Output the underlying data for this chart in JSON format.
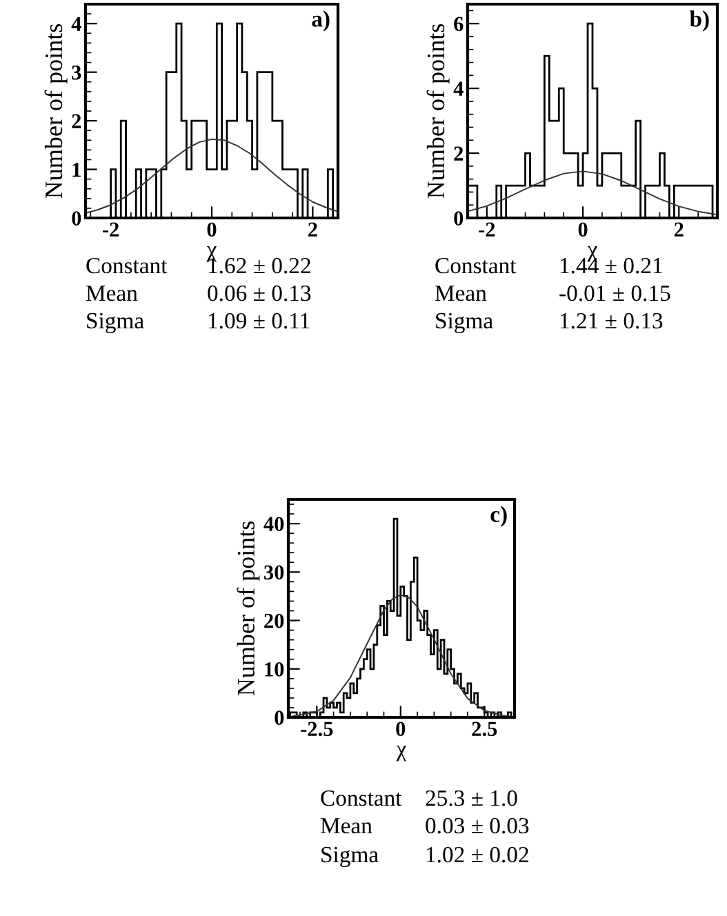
{
  "chart_data": [
    {
      "type": "histogram",
      "xlabel": "χ",
      "ylabel": "Number of points",
      "xlim": [
        -2.5,
        2.5
      ],
      "ylim": [
        0,
        4.4
      ],
      "xticks": [
        -2,
        0,
        2
      ],
      "yticks": [
        0,
        1,
        2,
        3,
        4
      ],
      "grid": false,
      "legend": false,
      "annotations": [
        "a)",
        "Constant",
        "1.62 ± 0.22",
        "Mean",
        "0.06 ± 0.13",
        "Sigma",
        "1.09 ± 0.11"
      ],
      "series": [
        {
          "color": "#000000",
          "bins": [
            -2.5,
            -2.4,
            -2.3,
            -2.2,
            -2.1,
            -2.0,
            -1.9,
            -1.8,
            -1.7,
            -1.6,
            -1.5,
            -1.4,
            -1.3,
            -1.2,
            -1.1,
            -1.0,
            -0.9,
            -0.8,
            -0.7,
            -0.6,
            -0.5,
            -0.4,
            -0.3,
            -0.2,
            -0.1,
            0.0,
            0.1,
            0.2,
            0.3,
            0.4,
            0.5,
            0.6,
            0.7,
            0.8,
            0.9,
            1.0,
            1.1,
            1.2,
            1.3,
            1.4,
            1.5,
            1.6,
            1.7,
            1.8,
            1.9,
            2.0,
            2.1,
            2.2,
            2.3,
            2.4,
            2.5
          ],
          "values": [
            0,
            0,
            0,
            0,
            0,
            1,
            0,
            2,
            0,
            0,
            1,
            0,
            1,
            1,
            0,
            1,
            3,
            3,
            4,
            2,
            1,
            2,
            2,
            2,
            1,
            1,
            4,
            1,
            2,
            2,
            4,
            3,
            2,
            1,
            3,
            3,
            3,
            2,
            2,
            1,
            1,
            1,
            0,
            1,
            0,
            0,
            0,
            0,
            1,
            0
          ]
        },
        {
          "type": "line",
          "color": "#333333",
          "x": [
            -2.5,
            -2.25,
            -2.0,
            -1.75,
            -1.5,
            -1.25,
            -1.0,
            -0.75,
            -0.5,
            -0.25,
            0,
            0.25,
            0.5,
            0.75,
            1.0,
            1.25,
            1.5,
            1.75,
            2.0,
            2.25,
            2.5
          ],
          "values": [
            0.1,
            0.17,
            0.27,
            0.41,
            0.58,
            0.79,
            1.01,
            1.23,
            1.42,
            1.56,
            1.62,
            1.6,
            1.49,
            1.33,
            1.12,
            0.89,
            0.68,
            0.49,
            0.33,
            0.22,
            0.13
          ]
        }
      ]
    },
    {
      "type": "histogram",
      "xlabel": "χ",
      "ylabel": "Number of points",
      "xlim": [
        -2.4,
        2.8
      ],
      "ylim": [
        0,
        6.6
      ],
      "xticks": [
        -2,
        0,
        2
      ],
      "yticks": [
        0,
        2,
        4,
        6
      ],
      "grid": false,
      "legend": false,
      "annotations": [
        "b)",
        "Constant",
        "1.44 ± 0.21",
        "Mean",
        "-0.01 ± 0.15",
        "Sigma",
        "1.21 ± 0.13"
      ],
      "series": [
        {
          "color": "#000000",
          "bins": [
            -2.4,
            -2.3,
            -2.2,
            -2.1,
            -2.0,
            -1.9,
            -1.8,
            -1.7,
            -1.6,
            -1.5,
            -1.4,
            -1.3,
            -1.2,
            -1.1,
            -1.0,
            -0.9,
            -0.8,
            -0.7,
            -0.6,
            -0.5,
            -0.4,
            -0.3,
            -0.2,
            -0.1,
            0.0,
            0.1,
            0.2,
            0.3,
            0.4,
            0.5,
            0.6,
            0.7,
            0.8,
            0.9,
            1.0,
            1.1,
            1.2,
            1.3,
            1.4,
            1.5,
            1.6,
            1.7,
            1.8,
            1.9,
            2.0,
            2.1,
            2.2,
            2.3,
            2.4,
            2.5,
            2.6,
            2.7,
            2.8
          ],
          "values": [
            1,
            1,
            0,
            0,
            0,
            0,
            1,
            0,
            1,
            1,
            1,
            1,
            2,
            1,
            1,
            1,
            5,
            3,
            3,
            4,
            2,
            2,
            2,
            1,
            2,
            6,
            4,
            1,
            2,
            2,
            2,
            2,
            1,
            1,
            1,
            3,
            0,
            1,
            1,
            1,
            2,
            1,
            0,
            1,
            1,
            1,
            1,
            1,
            1,
            1,
            1,
            0
          ]
        },
        {
          "type": "line",
          "color": "#333333",
          "x": [
            -2.4,
            -2.0,
            -1.6,
            -1.2,
            -0.8,
            -0.4,
            0,
            0.4,
            0.8,
            1.2,
            1.6,
            2.0,
            2.4,
            2.8
          ],
          "values": [
            0.2,
            0.37,
            0.61,
            0.89,
            1.16,
            1.37,
            1.44,
            1.36,
            1.15,
            0.87,
            0.59,
            0.36,
            0.2,
            0.1
          ]
        }
      ]
    },
    {
      "type": "histogram",
      "xlabel": "χ",
      "ylabel": "Number of points",
      "xlim": [
        -3.35,
        3.4
      ],
      "ylim": [
        0,
        45
      ],
      "xticks": [
        -2.5,
        0,
        2.5
      ],
      "yticks": [
        0,
        10,
        20,
        30,
        40
      ],
      "grid": false,
      "legend": false,
      "annotations": [
        "c)",
        "Constant",
        "25.3 ± 1.0",
        "Mean",
        "0.03 ± 0.03",
        "Sigma",
        "1.02 ± 0.02"
      ],
      "series": [
        {
          "color": "#000000",
          "bins": [
            -3.3,
            -3.2,
            -3.1,
            -3.0,
            -2.9,
            -2.8,
            -2.7,
            -2.6,
            -2.5,
            -2.4,
            -2.3,
            -2.2,
            -2.1,
            -2.0,
            -1.9,
            -1.8,
            -1.7,
            -1.6,
            -1.5,
            -1.4,
            -1.3,
            -1.2,
            -1.1,
            -1.0,
            -0.9,
            -0.8,
            -0.7,
            -0.6,
            -0.5,
            -0.4,
            -0.3,
            -0.2,
            -0.1,
            0.0,
            0.1,
            0.2,
            0.3,
            0.4,
            0.5,
            0.6,
            0.7,
            0.8,
            0.9,
            1.0,
            1.1,
            1.2,
            1.3,
            1.4,
            1.5,
            1.6,
            1.7,
            1.8,
            1.9,
            2.0,
            2.1,
            2.2,
            2.3,
            2.4,
            2.5,
            2.6,
            2.7,
            2.8,
            2.9,
            3.0,
            3.1,
            3.2,
            3.3,
            3.4
          ],
          "values": [
            1,
            1,
            0,
            0,
            1,
            0,
            1,
            1,
            0,
            1,
            4,
            2,
            3,
            2,
            3,
            1,
            5,
            4,
            7,
            5,
            8,
            10,
            12,
            14,
            10,
            15,
            19,
            23,
            17,
            24,
            22,
            41,
            21,
            27,
            25,
            16,
            28,
            33,
            20,
            18,
            22,
            17,
            13,
            18,
            10,
            16,
            9,
            14,
            10,
            7,
            9,
            6,
            5,
            7,
            3,
            5,
            2,
            2,
            1,
            0,
            1,
            0,
            1,
            0,
            0,
            1,
            0
          ]
        },
        {
          "type": "line",
          "color": "#333333",
          "x": [
            -3.3,
            -2.5,
            -2.0,
            -1.5,
            -1.0,
            -0.5,
            -0.25,
            0,
            0.25,
            0.5,
            1.0,
            1.5,
            2.0,
            2.5,
            3.0,
            3.4
          ],
          "values": [
            0.1,
            1.2,
            3.5,
            8.2,
            15.2,
            22.1,
            24.4,
            25.3,
            24.7,
            22.8,
            16.1,
            9.0,
            3.9,
            1.4,
            0.4,
            0.1
          ]
        }
      ]
    }
  ]
}
